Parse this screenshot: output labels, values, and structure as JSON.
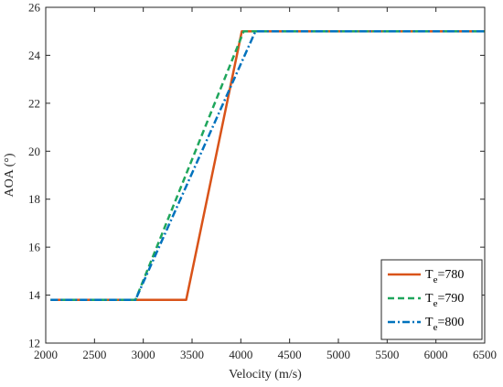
{
  "chart_data": {
    "type": "line",
    "xlabel": "Velocity (m/s)",
    "ylabel": "AOA (°)",
    "xlim": [
      2000,
      6500
    ],
    "ylim": [
      12,
      26
    ],
    "xticks": [
      2000,
      2500,
      3000,
      3500,
      4000,
      4500,
      5000,
      5500,
      6000,
      6500
    ],
    "yticks": [
      12,
      14,
      16,
      18,
      20,
      22,
      24,
      26
    ],
    "grid": false,
    "legend_position": "bottom-right",
    "series": [
      {
        "name": "T_e=780",
        "legend_base": "T",
        "legend_sub": "e",
        "legend_rest": "=780",
        "color": "#D95319",
        "dash": "solid",
        "points": [
          [
            2050,
            13.8
          ],
          [
            3440,
            13.8
          ],
          [
            4010,
            25.0
          ],
          [
            6500,
            25.0
          ]
        ]
      },
      {
        "name": "T_e=790",
        "legend_base": "T",
        "legend_sub": "e",
        "legend_rest": "=790",
        "color": "#1FA65C",
        "dash": "dashed",
        "points": [
          [
            2050,
            13.8
          ],
          [
            2920,
            13.8
          ],
          [
            4030,
            25.0
          ],
          [
            6500,
            25.0
          ]
        ]
      },
      {
        "name": "T_e=800",
        "legend_base": "T",
        "legend_sub": "e",
        "legend_rest": "=800",
        "color": "#0072BD",
        "dash": "dashdot",
        "points": [
          [
            2050,
            13.8
          ],
          [
            2920,
            13.8
          ],
          [
            4150,
            25.0
          ],
          [
            6500,
            25.0
          ]
        ]
      }
    ]
  }
}
